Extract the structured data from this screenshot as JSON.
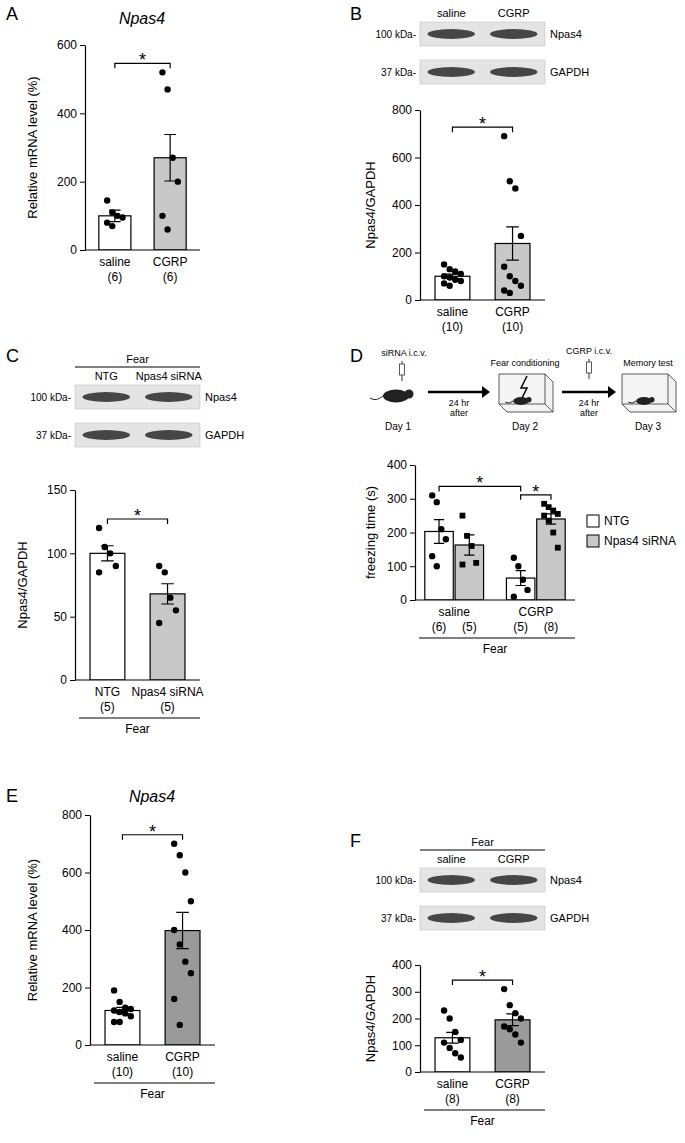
{
  "chart_data": [
    {
      "type": "bar",
      "panel": "A",
      "title": "Npas4",
      "y_label": "Relative mRNA level (%)",
      "categories": [
        "saline",
        "CGRP"
      ],
      "n_labels": [
        "(6)",
        "(6)"
      ],
      "values": [
        100,
        270
      ],
      "errors": [
        17,
        68
      ],
      "points": [
        [
          145,
          110,
          100,
          95,
          80,
          70
        ],
        [
          520,
          470,
          270,
          200,
          100,
          60
        ]
      ],
      "colors": [
        "#ffffff",
        "#c8c8c8"
      ],
      "marker": "circle",
      "ylim": [
        0,
        600
      ],
      "yticks": [
        0,
        200,
        400,
        600
      ],
      "annotations": [
        {
          "text": "*",
          "between": [
            0,
            1
          ]
        }
      ]
    },
    {
      "type": "bar",
      "panel": "B",
      "y_label": "Npas4/GAPDH",
      "blot": {
        "lanes": [
          "saline",
          "CGRP"
        ],
        "rows": [
          {
            "size": "100 kDa-",
            "protein": "Npas4"
          },
          {
            "size": "37 kDa-",
            "protein": "GAPDH"
          }
        ]
      },
      "categories": [
        "saline",
        "CGRP"
      ],
      "n_labels": [
        "(10)",
        "(10)"
      ],
      "values": [
        100,
        238
      ],
      "errors": [
        9,
        70
      ],
      "points": [
        [
          150,
          130,
          120,
          110,
          100,
          95,
          85,
          80,
          70,
          60
        ],
        [
          690,
          500,
          470,
          270,
          140,
          100,
          80,
          60,
          40,
          30
        ]
      ],
      "colors": [
        "#ffffff",
        "#c8c8c8"
      ],
      "marker": "circle",
      "ylim": [
        0,
        800
      ],
      "yticks": [
        0,
        200,
        400,
        600,
        800
      ],
      "annotations": [
        {
          "text": "*",
          "between": [
            0,
            1
          ]
        }
      ]
    },
    {
      "type": "bar",
      "panel": "C",
      "y_label": "Npas4/GAPDH",
      "blot": {
        "header": "Fear",
        "lanes": [
          "NTG",
          "Npas4 siRNA"
        ],
        "rows": [
          {
            "size": "100 kDa-",
            "protein": "Npas4"
          },
          {
            "size": "37 kDa-",
            "protein": "GAPDH"
          }
        ]
      },
      "categories": [
        "NTG",
        "Npas4 siRNA"
      ],
      "n_labels": [
        "(5)",
        "(5)"
      ],
      "group_label": "Fear",
      "values": [
        100,
        68
      ],
      "errors": [
        6,
        8
      ],
      "points": [
        [
          120,
          105,
          100,
          90,
          85
        ],
        [
          90,
          85,
          65,
          55,
          45
        ]
      ],
      "colors": [
        "#ffffff",
        "#c8c8c8"
      ],
      "marker": "circle",
      "ylim": [
        0,
        150
      ],
      "yticks": [
        0,
        50,
        100,
        150
      ],
      "annotations": [
        {
          "text": "*",
          "between": [
            0,
            1
          ]
        }
      ]
    },
    {
      "type": "bar",
      "panel": "D",
      "y_label": "freezing time (s)",
      "schematic": {
        "steps": [
          {
            "injection": "siRNA i.c.v.",
            "day": "Day 1"
          },
          {
            "label": "Fear conditioning",
            "day": "Day 2"
          },
          {
            "label": "Memory test",
            "day": "Day 3"
          }
        ],
        "arrows": [
          {
            "text": [
              "24 hr",
              "after"
            ]
          },
          {
            "injection": "CGRP i.c.v.",
            "text": [
              "24 hr",
              "after"
            ]
          }
        ]
      },
      "categories": [
        "saline",
        "CGRP"
      ],
      "group_label": "Fear",
      "series": [
        {
          "name": "NTG",
          "color": "#ffffff",
          "marker": "circle",
          "values": [
            203,
            65
          ],
          "errors": [
            35,
            22
          ],
          "points": [
            [
              310,
              290,
              210,
              180,
              130,
              100
            ],
            [
              125,
              100,
              60,
              30,
              10
            ]
          ],
          "n_labels": [
            "(6)",
            "(5)"
          ]
        },
        {
          "name": "Npas4 siRNA",
          "color": "#c8c8c8",
          "marker": "square",
          "values": [
            163,
            240
          ],
          "errors": [
            30,
            15
          ],
          "points": [
            [
              250,
              190,
              160,
              110,
              105
            ],
            [
              285,
              275,
              265,
              255,
              250,
              235,
              200,
              155
            ]
          ],
          "n_labels": [
            "(5)",
            "(8)"
          ]
        }
      ],
      "legend": "right",
      "ylim": [
        0,
        400
      ],
      "yticks": [
        0,
        100,
        200,
        300,
        400
      ],
      "annotations": [
        {
          "text": "*",
          "between": [
            [
              0,
              0
            ],
            [
              1,
              0
            ]
          ]
        },
        {
          "text": "*",
          "between": [
            [
              1,
              0
            ],
            [
              1,
              1
            ]
          ]
        }
      ]
    },
    {
      "type": "bar",
      "panel": "E",
      "title": "Npas4",
      "y_label": "Relative mRNA level (%)",
      "categories": [
        "saline",
        "CGRP"
      ],
      "n_labels": [
        "(10)",
        "(10)"
      ],
      "group_label": "Fear",
      "values": [
        120,
        398
      ],
      "errors": [
        11,
        63
      ],
      "points": [
        [
          190,
          150,
          130,
          125,
          120,
          115,
          110,
          100,
          80,
          80
        ],
        [
          700,
          660,
          600,
          500,
          400,
          350,
          290,
          250,
          160,
          70
        ]
      ],
      "colors": [
        "#ffffff",
        "#9a9a9a"
      ],
      "marker": "circle",
      "ylim": [
        0,
        800
      ],
      "yticks": [
        0,
        200,
        400,
        600,
        800
      ],
      "annotations": [
        {
          "text": "*",
          "between": [
            0,
            1
          ]
        }
      ]
    },
    {
      "type": "bar",
      "panel": "F",
      "y_label": "Npas4/GAPDH",
      "blot": {
        "header": "Fear",
        "lanes": [
          "saline",
          "CGRP"
        ],
        "rows": [
          {
            "size": "100 kDa-",
            "protein": "Npas4"
          },
          {
            "size": "37 kDa-",
            "protein": "GAPDH"
          }
        ]
      },
      "categories": [
        "saline",
        "CGRP"
      ],
      "n_labels": [
        "(8)",
        "(8)"
      ],
      "group_label": "Fear",
      "values": [
        128,
        195
      ],
      "errors": [
        20,
        22
      ],
      "points": [
        [
          230,
          200,
          150,
          120,
          110,
          90,
          70,
          54
        ],
        [
          310,
          250,
          220,
          200,
          170,
          160,
          140,
          110
        ]
      ],
      "colors": [
        "#ffffff",
        "#9a9a9a"
      ],
      "marker": "circle",
      "ylim": [
        0,
        400
      ],
      "yticks": [
        0,
        100,
        200,
        300,
        400
      ],
      "annotations": [
        {
          "text": "*",
          "between": [
            0,
            1
          ]
        }
      ]
    }
  ]
}
